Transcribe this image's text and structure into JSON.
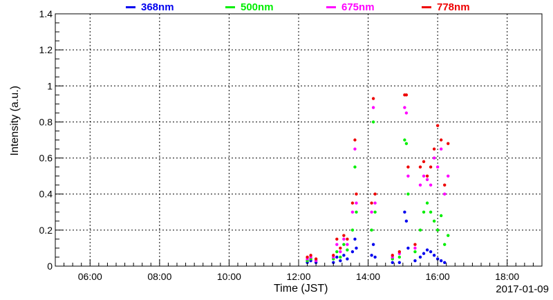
{
  "chart_data": {
    "type": "scatter",
    "title": "",
    "xlabel": "Time (JST)",
    "ylabel": "Intensity (a.u.)",
    "date_label": "2017-01-09",
    "x_unit": "hours (JST)",
    "xlim": [
      5.0,
      19.0
    ],
    "ylim": [
      0,
      1.4
    ],
    "x_ticks": [
      6,
      8,
      10,
      12,
      14,
      16,
      18
    ],
    "x_tick_labels": [
      "06:00",
      "08:00",
      "10:00",
      "12:00",
      "14:00",
      "16:00",
      "18:00"
    ],
    "y_ticks": [
      0,
      0.2,
      0.4,
      0.6,
      0.8,
      1.0,
      1.2,
      1.4
    ],
    "y_tick_labels": [
      "0",
      "0.2",
      "0.4",
      "0.6",
      "0.8",
      "1",
      "1.2",
      "1.4"
    ],
    "grid": true,
    "legend_position": "top",
    "series": [
      {
        "name": "368nm",
        "color": "#0000ee",
        "points": [
          [
            12.25,
            0.02
          ],
          [
            12.35,
            0.03
          ],
          [
            12.5,
            0.02
          ],
          [
            13.0,
            0.02
          ],
          [
            13.1,
            0.05
          ],
          [
            13.2,
            0.03
          ],
          [
            13.3,
            0.06
          ],
          [
            13.4,
            0.04
          ],
          [
            13.55,
            0.08
          ],
          [
            13.62,
            0.15
          ],
          [
            13.66,
            0.1
          ],
          [
            14.1,
            0.06
          ],
          [
            14.15,
            0.12
          ],
          [
            14.2,
            0.05
          ],
          [
            14.7,
            0.02
          ],
          [
            14.9,
            0.02
          ],
          [
            15.05,
            0.3
          ],
          [
            15.1,
            0.25
          ],
          [
            15.15,
            0.1
          ],
          [
            15.35,
            0.03
          ],
          [
            15.5,
            0.05
          ],
          [
            15.6,
            0.07
          ],
          [
            15.7,
            0.09
          ],
          [
            15.8,
            0.08
          ],
          [
            15.9,
            0.06
          ],
          [
            16.0,
            0.04
          ],
          [
            16.1,
            0.03
          ],
          [
            16.2,
            0.02
          ]
        ]
      },
      {
        "name": "500nm",
        "color": "#00ee00",
        "points": [
          [
            12.25,
            0.03
          ],
          [
            12.35,
            0.04
          ],
          [
            12.5,
            0.03
          ],
          [
            13.0,
            0.04
          ],
          [
            13.1,
            0.08
          ],
          [
            13.2,
            0.05
          ],
          [
            13.3,
            0.12
          ],
          [
            13.4,
            0.09
          ],
          [
            13.55,
            0.2
          ],
          [
            13.62,
            0.55
          ],
          [
            13.66,
            0.3
          ],
          [
            14.1,
            0.2
          ],
          [
            14.15,
            0.8
          ],
          [
            14.2,
            0.3
          ],
          [
            14.7,
            0.04
          ],
          [
            14.9,
            0.05
          ],
          [
            15.05,
            0.7
          ],
          [
            15.1,
            0.68
          ],
          [
            15.15,
            0.4
          ],
          [
            15.35,
            0.08
          ],
          [
            15.5,
            0.2
          ],
          [
            15.6,
            0.3
          ],
          [
            15.7,
            0.35
          ],
          [
            15.8,
            0.3
          ],
          [
            15.9,
            0.25
          ],
          [
            16.0,
            0.2
          ],
          [
            16.1,
            0.28
          ],
          [
            16.2,
            0.12
          ],
          [
            16.3,
            0.17
          ]
        ]
      },
      {
        "name": "675nm",
        "color": "#ff00ff",
        "points": [
          [
            12.25,
            0.04
          ],
          [
            12.35,
            0.05
          ],
          [
            12.5,
            0.03
          ],
          [
            13.0,
            0.05
          ],
          [
            13.1,
            0.12
          ],
          [
            13.2,
            0.08
          ],
          [
            13.3,
            0.15
          ],
          [
            13.4,
            0.12
          ],
          [
            13.55,
            0.3
          ],
          [
            13.62,
            0.65
          ],
          [
            13.66,
            0.35
          ],
          [
            14.1,
            0.3
          ],
          [
            14.15,
            0.88
          ],
          [
            14.2,
            0.35
          ],
          [
            14.7,
            0.05
          ],
          [
            14.9,
            0.07
          ],
          [
            15.05,
            0.88
          ],
          [
            15.1,
            0.85
          ],
          [
            15.15,
            0.5
          ],
          [
            15.35,
            0.1
          ],
          [
            15.5,
            0.45
          ],
          [
            15.6,
            0.5
          ],
          [
            15.7,
            0.48
          ],
          [
            15.8,
            0.45
          ],
          [
            15.9,
            0.6
          ],
          [
            16.0,
            0.55
          ],
          [
            16.1,
            0.65
          ],
          [
            16.2,
            0.4
          ],
          [
            16.3,
            0.5
          ]
        ]
      },
      {
        "name": "778nm",
        "color": "#ee0000",
        "points": [
          [
            12.25,
            0.05
          ],
          [
            12.35,
            0.06
          ],
          [
            12.5,
            0.04
          ],
          [
            13.0,
            0.06
          ],
          [
            13.1,
            0.15
          ],
          [
            13.2,
            0.1
          ],
          [
            13.3,
            0.17
          ],
          [
            13.4,
            0.15
          ],
          [
            13.55,
            0.35
          ],
          [
            13.62,
            0.7
          ],
          [
            13.66,
            0.4
          ],
          [
            14.1,
            0.35
          ],
          [
            14.15,
            0.93
          ],
          [
            14.2,
            0.4
          ],
          [
            14.7,
            0.06
          ],
          [
            14.9,
            0.08
          ],
          [
            15.05,
            0.95
          ],
          [
            15.1,
            0.95
          ],
          [
            15.15,
            0.55
          ],
          [
            15.35,
            0.12
          ],
          [
            15.5,
            0.55
          ],
          [
            15.6,
            0.58
          ],
          [
            15.7,
            0.5
          ],
          [
            15.8,
            0.55
          ],
          [
            15.9,
            0.65
          ],
          [
            16.0,
            0.78
          ],
          [
            16.1,
            0.7
          ],
          [
            16.2,
            0.45
          ],
          [
            16.3,
            0.68
          ]
        ]
      }
    ]
  }
}
